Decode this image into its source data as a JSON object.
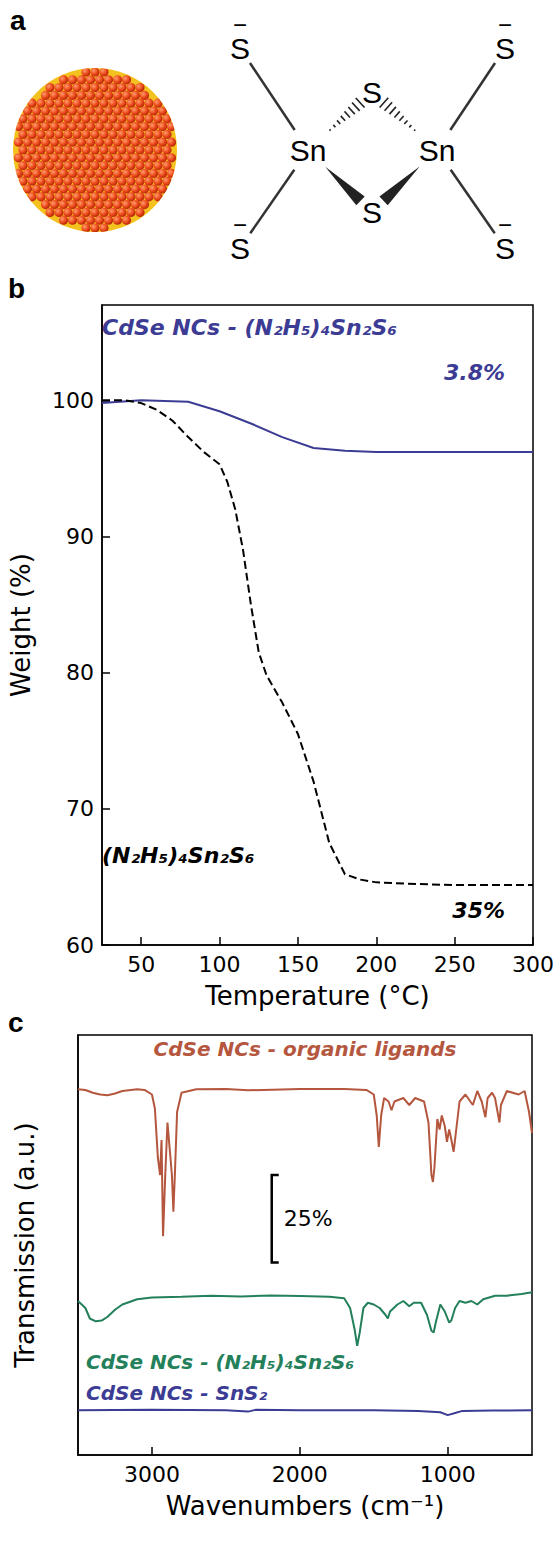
{
  "diagram": {
    "label": "a",
    "metal": [
      "Sn",
      "Sn"
    ],
    "bridging": [
      "S",
      "S"
    ],
    "terminal": [
      {
        "text": "S",
        "charge": "−"
      },
      {
        "text": "S",
        "charge": "−"
      },
      {
        "text": "S",
        "charge": "−"
      },
      {
        "text": "S",
        "charge": "−"
      }
    ]
  },
  "chart_data": [
    {
      "panel_label": "b",
      "type": "line",
      "x_label": "Temperature (°C)",
      "y_label": "Weight (%)",
      "xlim": [
        25,
        300
      ],
      "xticks": [
        50,
        100,
        150,
        200,
        250,
        300
      ],
      "ylim": [
        60,
        107
      ],
      "yticks": [
        60,
        70,
        80,
        90,
        100
      ],
      "grid": false,
      "series": [
        {
          "name": "CdSe NCs - (N₂H₅)₄Sn₂S₆",
          "color": "#3c3c94",
          "line_style": "solid",
          "annotation": "3.8%",
          "x": [
            25,
            50,
            80,
            100,
            120,
            140,
            160,
            180,
            200,
            250,
            300
          ],
          "values": [
            99.8,
            100,
            99.9,
            99.2,
            98.3,
            97.3,
            96.5,
            96.3,
            96.2,
            96.2,
            96.2
          ]
        },
        {
          "name": "(N₂H₅)₄Sn₂S₆",
          "color": "#000000",
          "line_style": "dashed",
          "annotation": "35%",
          "x": [
            25,
            40,
            50,
            60,
            70,
            80,
            90,
            100,
            105,
            110,
            115,
            120,
            125,
            130,
            140,
            150,
            160,
            170,
            180,
            190,
            200,
            220,
            250,
            300
          ],
          "values": [
            100,
            100,
            99.8,
            99.3,
            98.5,
            97.3,
            96.2,
            95.3,
            94.0,
            92.0,
            89.0,
            85.0,
            81.5,
            79.8,
            77.8,
            75.5,
            72.0,
            67.5,
            65.2,
            64.8,
            64.6,
            64.5,
            64.4,
            64.4
          ]
        }
      ]
    },
    {
      "panel_label": "c",
      "type": "line",
      "x_label": "Wavenumbers (cm⁻¹)",
      "y_label": "Transmission (a.u.)",
      "xlim": [
        3500,
        430
      ],
      "xticks": [
        3000,
        2000,
        1000
      ],
      "ylim": [
        0,
        120
      ],
      "tick_labels": "x",
      "grid": false,
      "scale_bar": {
        "value": 25,
        "label": "25%"
      },
      "series": [
        {
          "name": "CdSe NCs - organic ligands",
          "color": "#b5573e",
          "line_style": "solid",
          "x": [
            3500,
            3450,
            3400,
            3350,
            3300,
            3250,
            3200,
            3100,
            3050,
            3000,
            2980,
            2960,
            2945,
            2935,
            2925,
            2910,
            2895,
            2875,
            2865,
            2855,
            2845,
            2830,
            2800,
            2700,
            2500,
            2350,
            2000,
            1700,
            1550,
            1500,
            1480,
            1466,
            1450,
            1430,
            1400,
            1380,
            1360,
            1300,
            1260,
            1220,
            1160,
            1130,
            1110,
            1100,
            1090,
            1070,
            1055,
            1040,
            1020,
            1005,
            990,
            975,
            960,
            945,
            920,
            880,
            830,
            800,
            770,
            745,
            730,
            700,
            680,
            650,
            640,
            600,
            520,
            480,
            450,
            430
          ],
          "values": [
            104.5,
            104.3,
            103.5,
            103,
            102.8,
            103.3,
            104,
            104.5,
            104.3,
            103,
            99,
            85,
            80,
            90,
            62.5,
            80,
            95,
            85,
            80,
            69.5,
            80,
            98,
            103.5,
            104.5,
            104.6,
            104.2,
            104.6,
            104.6,
            104.3,
            103,
            97,
            88,
            97,
            102,
            101,
            98.5,
            101,
            102,
            100,
            102,
            101,
            95,
            80,
            78,
            82,
            96,
            93,
            97,
            94,
            89.5,
            93,
            90,
            86.6,
            92,
            101,
            103,
            100,
            104,
            101,
            96.5,
            102,
            103.5,
            102,
            95,
            100,
            104,
            103,
            104,
            98,
            92
          ]
        },
        {
          "name": "CdSe NCs - (N₂H₅)₄Sn₂S₆",
          "color": "#23805a",
          "line_style": "solid",
          "x": [
            3500,
            3450,
            3420,
            3380,
            3340,
            3300,
            3250,
            3200,
            3100,
            3000,
            2800,
            2600,
            2400,
            2200,
            2000,
            1800,
            1700,
            1660,
            1630,
            1612,
            1595,
            1570,
            1540,
            1500,
            1460,
            1420,
            1405,
            1390,
            1340,
            1300,
            1260,
            1230,
            1180,
            1140,
            1110,
            1095,
            1080,
            1050,
            1020,
            990,
            975,
            950,
            920,
            880,
            840,
            800,
            760,
            720,
            680,
            600,
            500,
            430
          ],
          "values": [
            44,
            42,
            39,
            38.2,
            38.4,
            39.5,
            41.5,
            43,
            44.5,
            45,
            45.2,
            45.5,
            45.3,
            45.6,
            45.4,
            45.2,
            44.8,
            42,
            36,
            31.2,
            35,
            42,
            43.5,
            43,
            42,
            40,
            39,
            41,
            43,
            44,
            42.5,
            43.5,
            43.5,
            40,
            35.5,
            35,
            38,
            43,
            41,
            37.8,
            38.5,
            42,
            44,
            43.5,
            44,
            43,
            44.5,
            45,
            45.5,
            45.5,
            46,
            46.5
          ]
        },
        {
          "name": "CdSe NCs - SnS₂",
          "color": "#3c3c94",
          "line_style": "solid",
          "x": [
            3500,
            3000,
            2500,
            2350,
            2300,
            2000,
            1500,
            1200,
            1050,
            1000,
            950,
            900,
            700,
            430
          ],
          "values": [
            12.8,
            12.9,
            12.8,
            12.4,
            12.9,
            12.8,
            12.8,
            12.6,
            12.2,
            11.4,
            12,
            12.6,
            12.7,
            12.8
          ]
        }
      ]
    }
  ]
}
